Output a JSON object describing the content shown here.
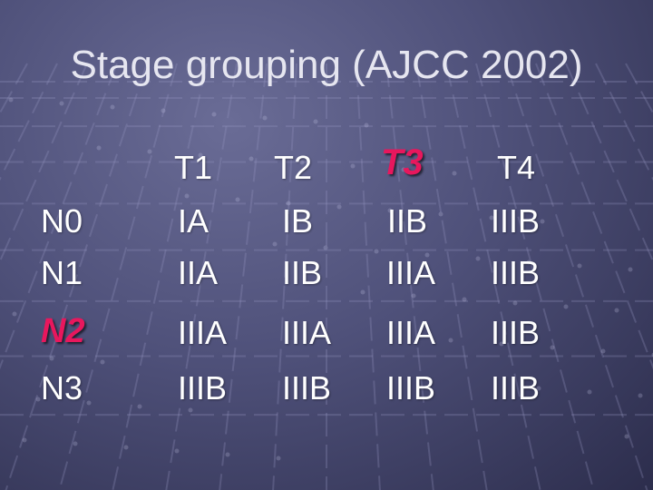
{
  "slide": {
    "title": "Stage grouping (AJCC 2002)",
    "highlight_color": "#e8175d",
    "text_color": "#ffffff"
  },
  "table": {
    "columns": [
      "T1",
      "T2",
      "T3",
      "T4"
    ],
    "rows": [
      {
        "label": "N0",
        "cells": [
          "IA",
          "IB",
          "IIB",
          "IIIB"
        ]
      },
      {
        "label": "N1",
        "cells": [
          "IIA",
          "IIB",
          "IIIA",
          "IIIB"
        ]
      },
      {
        "label": "N2",
        "cells": [
          "IIIA",
          "IIIA",
          "IIIA",
          "IIIB"
        ]
      },
      {
        "label": "N3",
        "cells": [
          "IIIB",
          "IIIB",
          "IIIB",
          "IIIB"
        ]
      }
    ],
    "highlighted_column": "T3",
    "highlighted_row": "N2"
  }
}
